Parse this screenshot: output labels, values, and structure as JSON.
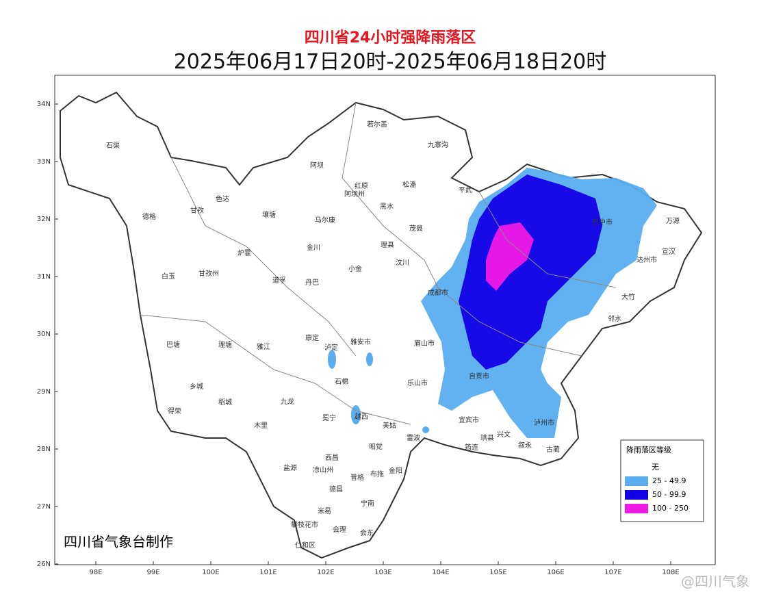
{
  "header": {
    "title": "四川省24小时强降雨落区",
    "subtitle": "2025年06月17日20时-2025年06月18日20时"
  },
  "map": {
    "lat_labels": [
      "34N",
      "33N",
      "32N",
      "31N",
      "30N",
      "29N",
      "28N",
      "27N",
      "26N"
    ],
    "lon_labels": [
      "98E",
      "99E",
      "100E",
      "101E",
      "102E",
      "103E",
      "104E",
      "105E",
      "106E",
      "107E",
      "108E"
    ],
    "place_labels": [
      "石渠",
      "德格",
      "甘孜",
      "色达",
      "若尔盖",
      "九寨沟",
      "阿坝",
      "红原",
      "阿坝州",
      "松潘",
      "马尔康",
      "黑水",
      "壤塘",
      "平武",
      "金川",
      "理县",
      "茂县",
      "炉霍",
      "甘孜州",
      "白玉",
      "道孚",
      "丹巴",
      "小金",
      "汶川",
      "成都市",
      "巴塘",
      "理塘",
      "雅江",
      "康定",
      "泸定",
      "雅安市",
      "眉山市",
      "乐山市",
      "自贡市",
      "泸州市",
      "宜宾市",
      "万源",
      "巴中市",
      "达州市",
      "宣汉",
      "大竹",
      "邻水",
      "乡城",
      "稻城",
      "得荣",
      "九龙",
      "木里",
      "冕宁",
      "越西",
      "石棉",
      "盐源",
      "凉山州",
      "西昌",
      "德昌",
      "米易",
      "攀枝花市",
      "仁和区",
      "会理",
      "会东",
      "宁南",
      "普格",
      "昭觉",
      "美姑",
      "雷波",
      "布拖",
      "金阳",
      "叙永",
      "古蔺",
      "筠连",
      "兴文",
      "珙县"
    ],
    "legend": {
      "title": "降雨落区等级",
      "items": [
        {
          "label": "无",
          "color": "#ffffff"
        },
        {
          "label": "25 - 49.9",
          "color": "#5aaef0"
        },
        {
          "label": "50 - 99.9",
          "color": "#1400e6"
        },
        {
          "label": "100 - 250",
          "color": "#f019e6"
        }
      ]
    },
    "credit": "四川省气象台制作"
  },
  "watermark": "@四川气象"
}
